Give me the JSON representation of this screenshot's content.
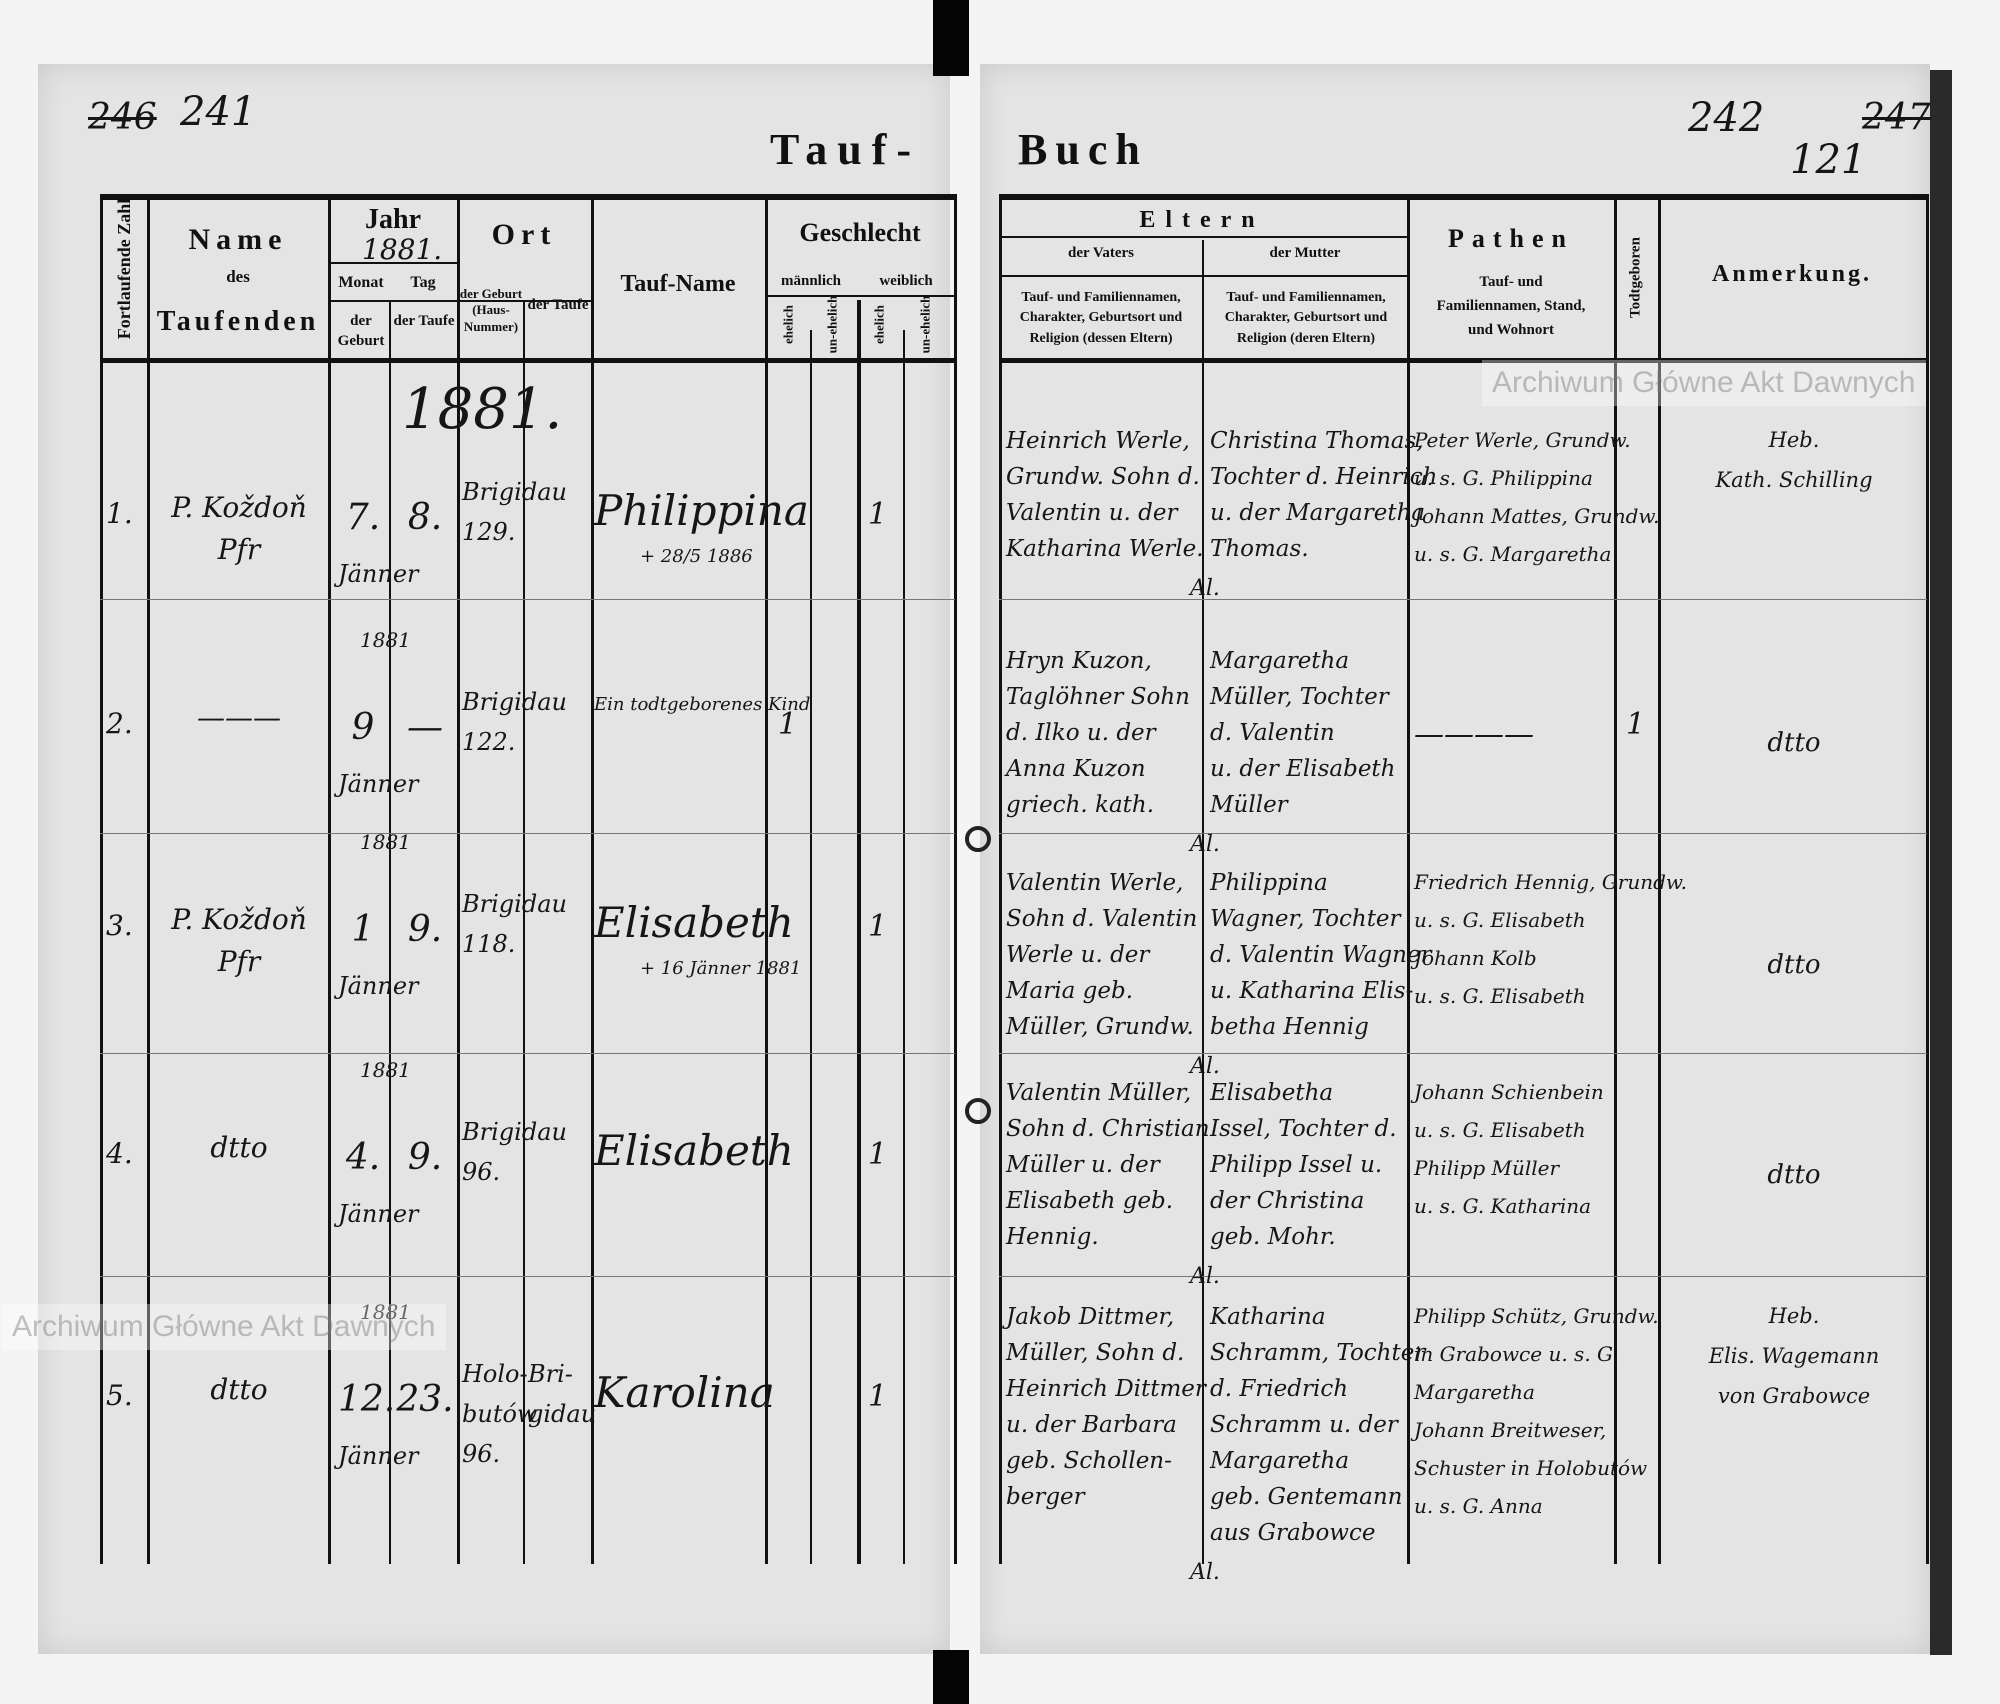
{
  "book_title": {
    "left": "Tauf-",
    "right": "Buch"
  },
  "page_numbers": {
    "left_struck": "246",
    "left": "241",
    "right": "242",
    "right_struck": "247",
    "right_folio": "121"
  },
  "watermark": "Archiwum Główne Akt Dawnych",
  "header": {
    "fortlaufende_zahl": "Fortlaufende Zahl",
    "name": "Name",
    "name_des": "des",
    "name_taufenden": "Taufenden",
    "jahr": "Jahr",
    "jahr_value": "1881.",
    "monat": "Monat",
    "tag": "Tag",
    "der_geburt": "der Geburt",
    "der_taufe": "der Taufe",
    "ort": "Ort",
    "ort_geburt": "der Geburt (Haus-Nummer)",
    "ort_taufe": "der Taufe",
    "tauf_name": "Tauf-Name",
    "geschlecht": "Geschlecht",
    "maennlich": "männlich",
    "weiblich": "weiblich",
    "ehelich": "ehelich",
    "unehelich": "un-ehelich",
    "eltern": "Eltern",
    "vaters": "der Vaters",
    "mutter": "der Mutter",
    "vaters_desc": "Tauf- und Familiennamen, Charakter, Geburtsort und Religion (dessen Eltern)",
    "mutter_desc": "Tauf- und Familiennamen, Charakter, Geburtsort und Religion (deren Eltern)",
    "pathen": "Pathen",
    "pathen_desc": "Tauf- und Familiennamen, Stand, und Wohnort",
    "todtgeboren": "Todtgeboren",
    "anmerkung": "Anmerkung."
  },
  "year_heading": "1881.",
  "entries": [
    {
      "no": "1.",
      "name": [
        "P. Koždoň",
        "Pfr"
      ],
      "birth_day": "7.",
      "baptism_day": "8.",
      "month": "Jänner",
      "year_note": "",
      "ort_geburt": [
        "Brigidau",
        "129."
      ],
      "ort_taufe": [],
      "tauf_name": "Philippina",
      "tauf_note": "+ 28/5 1886",
      "sex_column": "weiblich ehelich",
      "sex_count": "1",
      "vater": [
        "Heinrich Werle,",
        "Grundw. Sohn d.",
        "Valentin u. der",
        "Katharina Werle."
      ],
      "mutter": [
        "Christina Thomas,",
        "Tochter d. Heinrich",
        "u. der Margaretha",
        "Thomas."
      ],
      "pathen": [
        "Peter Werle, Grundw.",
        "u. s. G. Philippina",
        "Johann Mattes, Grundw.",
        "u. s. G. Margaretha"
      ],
      "todtgeboren": "",
      "anmerkung": [
        "Heb.",
        "Kath. Schilling"
      ],
      "mark": "Al."
    },
    {
      "no": "2.",
      "name": [
        "———"
      ],
      "birth_day": "9",
      "baptism_day": "—",
      "month": "Jänner",
      "year_note": "1881",
      "ort_geburt": [
        "Brigidau",
        "122."
      ],
      "ort_taufe": [],
      "tauf_name": "Ein todtgeborenes Kind",
      "tauf_note": "",
      "sex_column": "männlich ehelich",
      "sex_count": "1",
      "vater": [
        "Hryn Kuzon,",
        "Taglöhner Sohn",
        "d. Ilko u. der",
        "Anna Kuzon",
        "griech. kath."
      ],
      "mutter": [
        "Margaretha",
        "Müller, Tochter",
        "d. Valentin",
        "u. der Elisabeth",
        "Müller"
      ],
      "pathen": [
        "————"
      ],
      "todtgeboren": "1",
      "anmerkung": [
        "dtto"
      ],
      "mark": "Al."
    },
    {
      "no": "3.",
      "name": [
        "P. Koždoň",
        "Pfr"
      ],
      "birth_day": "1",
      "baptism_day": "9.",
      "month": "Jänner",
      "year_note": "1881",
      "ort_geburt": [
        "Brigidau",
        "118."
      ],
      "ort_taufe": [],
      "tauf_name": "Elisabeth",
      "tauf_note": "+ 16 Jänner 1881",
      "sex_column": "weiblich ehelich",
      "sex_count": "1",
      "vater": [
        "Valentin Werle,",
        "Sohn d. Valentin",
        "Werle u. der",
        "Maria geb.",
        "Müller, Grundw."
      ],
      "mutter": [
        "Philippina",
        "Wagner, Tochter",
        "d. Valentin Wagner",
        "u. Katharina Elis-",
        "betha Hennig"
      ],
      "pathen": [
        "Friedrich Hennig, Grundw.",
        "u. s. G. Elisabeth",
        "Johann Kolb",
        "u. s. G. Elisabeth"
      ],
      "todtgeboren": "",
      "anmerkung": [
        "dtto"
      ],
      "mark": "Al."
    },
    {
      "no": "4.",
      "name": [
        "dtto"
      ],
      "birth_day": "4.",
      "baptism_day": "9.",
      "month": "Jänner",
      "year_note": "1881",
      "ort_geburt": [
        "Brigidau",
        "96."
      ],
      "ort_taufe": [],
      "tauf_name": "Elisabeth",
      "tauf_note": "",
      "sex_column": "weiblich ehelich",
      "sex_count": "1",
      "vater": [
        "Valentin Müller,",
        "Sohn d. Christian",
        "Müller u. der",
        "Elisabeth geb.",
        "Hennig."
      ],
      "mutter": [
        "Elisabetha",
        "Issel, Tochter d.",
        "Philipp Issel u.",
        "der Christina",
        "geb. Mohr."
      ],
      "pathen": [
        "Johann Schienbein",
        "u. s. G. Elisabeth",
        "Philipp Müller",
        "u. s. G. Katharina"
      ],
      "todtgeboren": "",
      "anmerkung": [
        "dtto"
      ],
      "mark": "Al."
    },
    {
      "no": "5.",
      "name": [
        "dtto"
      ],
      "birth_day": "12.",
      "baptism_day": "23.",
      "month": "Jänner",
      "year_note": "1881",
      "ort_geburt": [
        "Holo-",
        "butów",
        "96."
      ],
      "ort_taufe": [
        "Bri-",
        "gidau"
      ],
      "tauf_name": "Karolina",
      "tauf_note": "",
      "sex_column": "weiblich ehelich",
      "sex_count": "1",
      "vater": [
        "Jakob Dittmer,",
        "Müller, Sohn d.",
        "Heinrich Dittmer",
        "u. der Barbara",
        "geb. Schollen-",
        "berger"
      ],
      "mutter": [
        "Katharina",
        "Schramm, Tochter",
        "d. Friedrich",
        "Schramm u. der",
        "Margaretha",
        "geb. Gentemann",
        "aus Grabowce"
      ],
      "pathen": [
        "Philipp Schütz, Grundw.",
        "in Grabowce u. s. G.",
        "Margaretha",
        "Johann Breitweser,",
        "Schuster in Holobutów",
        "u. s. G. Anna"
      ],
      "todtgeboren": "",
      "anmerkung": [
        "Heb.",
        "Elis. Wagemann",
        "von Grabowce"
      ],
      "mark": "Al."
    }
  ]
}
